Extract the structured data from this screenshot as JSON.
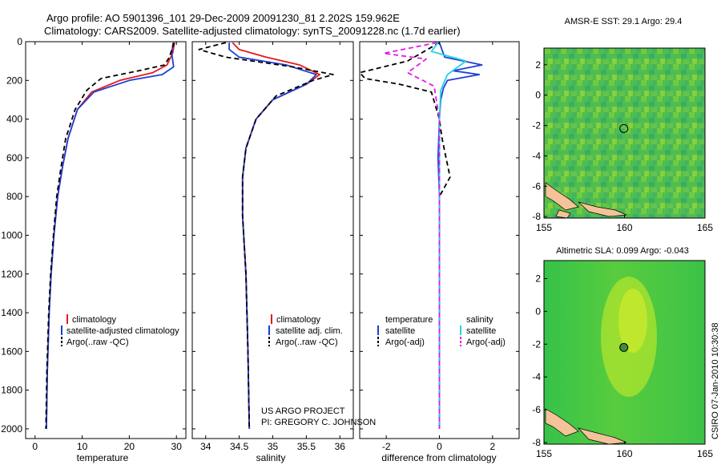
{
  "figure": {
    "title_line1": "Argo profile: AO 5901396_101 29-Dec-2009 20091230_81 2.202S 159.962E",
    "title_line2": "Climatology: CARS2009. Satellite-adjusted climatology: synTS_20091228.nc (1.7d earlier)",
    "project_line1": "US ARGO PROJECT",
    "project_line2": "PI: GREGORY C. JOHNSON",
    "credit": "CSIRO 07-Jan-2010 10:30:38"
  },
  "colors": {
    "climatology": "#e41a1c",
    "satellite": "#1f3fd6",
    "argo": "#000000",
    "sat_diff": "#22d3e6",
    "argo_sal_diff": "#e619e6"
  },
  "chart_data": [
    {
      "id": "temperature",
      "type": "line",
      "xlabel": "temperature",
      "ylabel": "",
      "xlim": [
        -2,
        32
      ],
      "ylim": [
        2050,
        0
      ],
      "y_inverted": true,
      "xticks": [
        0,
        10,
        20,
        30
      ],
      "yticks": [
        0,
        200,
        400,
        600,
        800,
        1000,
        1200,
        1400,
        1600,
        1800,
        2000
      ],
      "legend": {
        "placement": "lower-right",
        "entries": [
          "climatology",
          "satellite-adjusted climatology",
          "Argo(..raw -QC)"
        ]
      },
      "series": [
        {
          "name": "climatology",
          "style": "solid",
          "color": "#e41a1c",
          "x": [
            29.6,
            29.2,
            28.0,
            25.0,
            18.0,
            12.0,
            9.0,
            7.0,
            5.8,
            4.8,
            4.0,
            3.4,
            3.0,
            2.6,
            2.4
          ],
          "y": [
            5,
            60,
            120,
            160,
            200,
            260,
            350,
            500,
            650,
            800,
            1000,
            1200,
            1400,
            1700,
            2000
          ]
        },
        {
          "name": "satellite-adjusted climatology",
          "style": "solid",
          "color": "#1f3fd6",
          "x": [
            29.3,
            29.0,
            29.4,
            27.0,
            20.0,
            12.5,
            9.0,
            7.0,
            5.8,
            4.8,
            4.0,
            3.4,
            3.0,
            2.6,
            2.4
          ],
          "y": [
            5,
            60,
            130,
            170,
            200,
            260,
            350,
            500,
            650,
            800,
            1000,
            1200,
            1400,
            1700,
            2000
          ]
        },
        {
          "name": "Argo(..raw -QC)",
          "style": "dashed",
          "color": "#000000",
          "x": [
            29.5,
            28.5,
            27.5,
            22.0,
            14.0,
            11.0,
            8.5,
            6.5,
            5.5,
            4.6,
            3.9,
            3.3,
            2.9,
            2.5,
            2.3
          ],
          "y": [
            5,
            80,
            120,
            150,
            190,
            250,
            350,
            500,
            650,
            800,
            1000,
            1200,
            1400,
            1700,
            2000
          ]
        }
      ]
    },
    {
      "id": "salinity",
      "type": "line",
      "xlabel": "salinity",
      "xlim": [
        33.8,
        36.2
      ],
      "ylim": [
        2050,
        0
      ],
      "y_inverted": true,
      "xticks": [
        34,
        34.5,
        35,
        35.5,
        36
      ],
      "legend": {
        "placement": "lower-right",
        "entries": [
          "climatology",
          "satellite adj. clim.",
          "Argo(..raw -QC)"
        ]
      },
      "series": [
        {
          "name": "climatology",
          "style": "solid",
          "color": "#e41a1c",
          "x": [
            34.4,
            34.5,
            34.9,
            35.4,
            35.7,
            35.5,
            35.0,
            34.75,
            34.6,
            34.55,
            34.55,
            34.6,
            34.63,
            34.65
          ],
          "y": [
            5,
            40,
            80,
            120,
            170,
            220,
            300,
            400,
            550,
            700,
            900,
            1200,
            1600,
            2000
          ]
        },
        {
          "name": "satellite adj. clim.",
          "style": "solid",
          "color": "#1f3fd6",
          "x": [
            34.35,
            34.35,
            34.5,
            35.2,
            35.65,
            35.5,
            35.0,
            34.75,
            34.6,
            34.55,
            34.55,
            34.6,
            34.63,
            34.65
          ],
          "y": [
            5,
            40,
            80,
            120,
            170,
            220,
            300,
            400,
            550,
            700,
            900,
            1200,
            1600,
            2000
          ]
        },
        {
          "name": "Argo(..raw -QC)",
          "style": "dashed",
          "color": "#000000",
          "x": [
            34.3,
            33.9,
            34.3,
            35.3,
            35.9,
            35.6,
            35.05,
            34.75,
            34.6,
            34.55,
            34.55,
            34.6,
            34.63,
            34.65
          ],
          "y": [
            5,
            40,
            80,
            130,
            170,
            200,
            280,
            400,
            550,
            700,
            900,
            1200,
            1600,
            2000
          ]
        }
      ]
    },
    {
      "id": "difference",
      "type": "line",
      "xlabel": "difference from climatology",
      "xlim": [
        -3,
        3
      ],
      "ylim": [
        2050,
        0
      ],
      "y_inverted": true,
      "xticks": [
        -2,
        0,
        2
      ],
      "legend": {
        "placement": "lower-right",
        "entries": [
          "temperature",
          "satellite",
          "Argo(-adj)",
          "salinity",
          "satellite",
          "Argo(-adj)"
        ]
      },
      "series": [
        {
          "name": "temperature satellite",
          "style": "solid",
          "color": "#1f3fd6",
          "x": [
            0.0,
            0.2,
            1.6,
            0.5,
            1.5,
            0.3,
            0.15,
            0.05,
            0.0,
            -0.05,
            0.0,
            0.0,
            0.0,
            0.0
          ],
          "y": [
            5,
            80,
            120,
            150,
            170,
            200,
            240,
            300,
            400,
            600,
            800,
            1200,
            1600,
            2000
          ]
        },
        {
          "name": "temperature Argo(-adj)",
          "style": "dashed",
          "color": "#000000",
          "x": [
            0.0,
            -1.2,
            -2.4,
            -3.0,
            -2.8,
            -1.5,
            -0.3,
            0.0,
            0.1,
            0.4,
            0.0,
            0.0,
            0.0,
            0.0
          ],
          "y": [
            5,
            100,
            140,
            160,
            190,
            220,
            260,
            400,
            500,
            700,
            800,
            1200,
            1600,
            2000
          ]
        },
        {
          "name": "salinity satellite",
          "style": "solid",
          "color": "#22d3e6",
          "x": [
            -0.05,
            -0.3,
            1.0,
            0.3,
            0.05,
            0.0,
            0.0,
            0.0,
            0.0,
            0.0
          ],
          "y": [
            5,
            50,
            100,
            170,
            250,
            400,
            800,
            1200,
            1600,
            2000
          ]
        },
        {
          "name": "salinity Argo(-adj)",
          "style": "dashed",
          "color": "#e619e6",
          "x": [
            -0.1,
            -2.1,
            -0.5,
            -1.2,
            -0.2,
            0.0,
            0.0,
            0.0,
            0.0,
            0.0
          ],
          "y": [
            5,
            60,
            90,
            160,
            230,
            400,
            800,
            1200,
            1600,
            2000
          ]
        }
      ]
    },
    {
      "id": "sst_map",
      "type": "heatmap",
      "title": "AMSR-E SST: 29.1  Argo: 29.4",
      "xlim": [
        155,
        165
      ],
      "ylim": [
        -8.1,
        3.1
      ],
      "xticks": [
        155,
        160,
        165
      ],
      "yticks": [
        2,
        0,
        -2,
        -4,
        -6,
        -8
      ],
      "marker": {
        "lon": 159.962,
        "lat": -2.202,
        "filled": false
      }
    },
    {
      "id": "sla_map",
      "type": "heatmap",
      "title": "Altimetric SLA: 0.099  Argo: -0.043",
      "xlim": [
        155,
        165
      ],
      "ylim": [
        -8.1,
        3.1
      ],
      "xticks": [
        155,
        160,
        165
      ],
      "yticks": [
        2,
        0,
        -2,
        -4,
        -6,
        -8
      ],
      "marker": {
        "lon": 159.962,
        "lat": -2.202,
        "filled": true
      }
    }
  ]
}
